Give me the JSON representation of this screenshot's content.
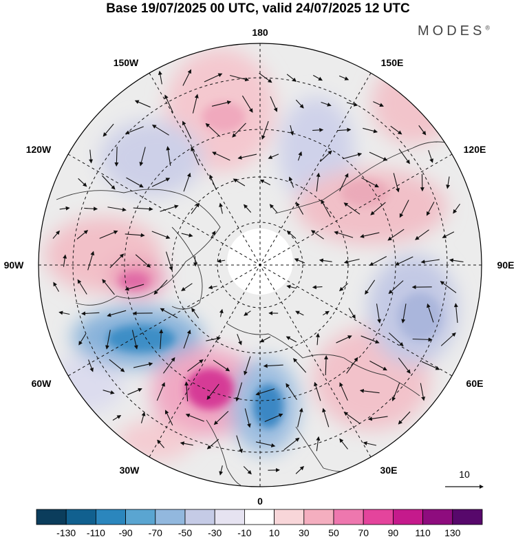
{
  "title": "Base 19/07/2025 00 UTC, valid 24/07/2025 12 UTC",
  "brand": {
    "name": "MODES",
    "mark": "®"
  },
  "meridian_labels": {
    "top": "180",
    "bottom": "0",
    "left": "90W",
    "right": "90E",
    "upper_left_1": "150W",
    "upper_left_2": "120W",
    "upper_right_1": "150E",
    "upper_right_2": "120E",
    "lower_left_1": "60W",
    "lower_left_2": "30W",
    "lower_right_1": "60E",
    "lower_right_2": "30E"
  },
  "vector_reference": {
    "value": "10"
  },
  "colorbar": {
    "ticks": [
      "-130",
      "-110",
      "-90",
      "-70",
      "-50",
      "-30",
      "-10",
      "10",
      "30",
      "50",
      "70",
      "90",
      "110",
      "130"
    ],
    "colors": [
      "#0b3d5c",
      "#11608f",
      "#2b86bd",
      "#5aa5d1",
      "#92b8de",
      "#c5cbe6",
      "#e6e3f1",
      "#ffffff",
      "#f8d6d9",
      "#f4aebf",
      "#ee77ae",
      "#e4449c",
      "#c51a8c",
      "#8e0c7e",
      "#57086b"
    ]
  },
  "anomaly_centers": [
    {
      "kind": "high",
      "color": "#f7d4d8"
    },
    {
      "kind": "high",
      "color": "#f0b6c0"
    },
    {
      "kind": "low",
      "color": "#c8cce6"
    },
    {
      "kind": "low",
      "color": "#3f91c7"
    },
    {
      "kind": "high",
      "color": "#e0409a"
    },
    {
      "kind": "low",
      "color": "#2f7fbf"
    },
    {
      "kind": "high",
      "color": "#f2bcc6"
    },
    {
      "kind": "low",
      "color": "#b5c1e2"
    },
    {
      "kind": "high",
      "color": "#f3c6cd"
    }
  ]
}
